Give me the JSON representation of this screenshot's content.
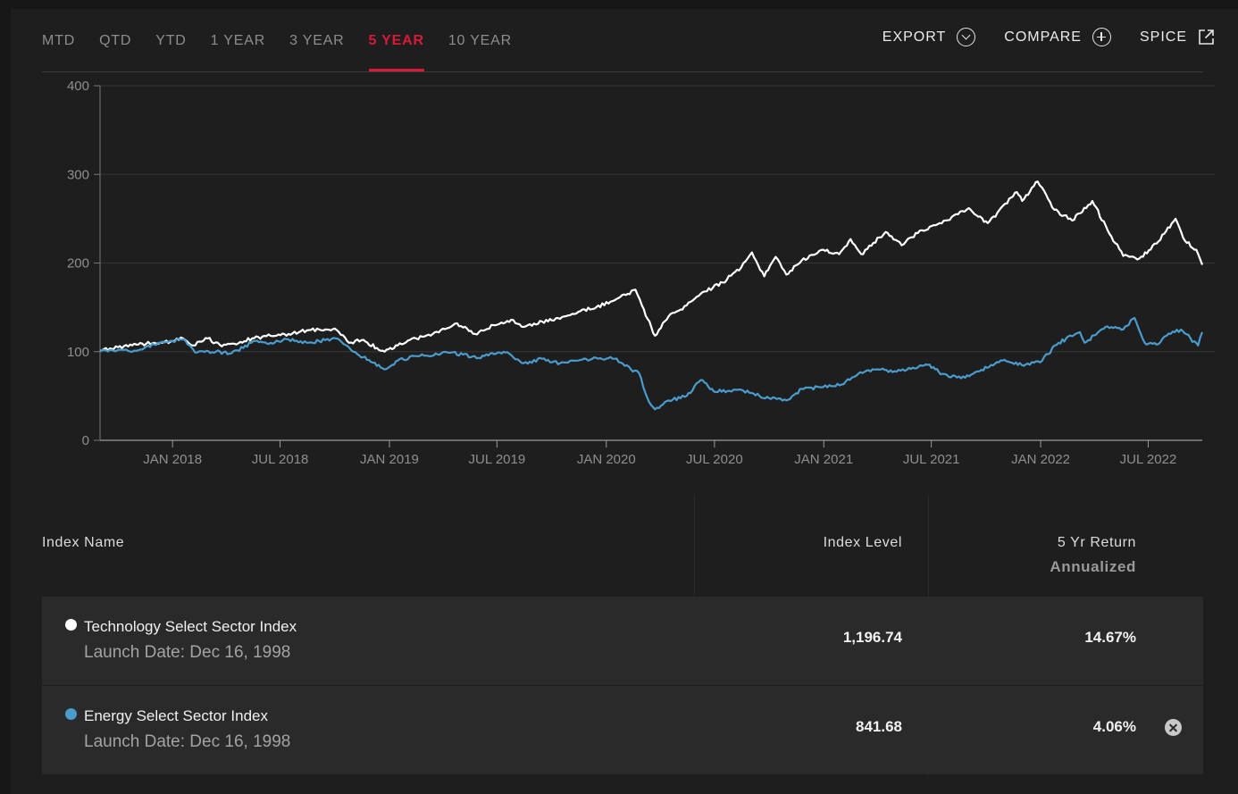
{
  "tabs": [
    {
      "label": "MTD"
    },
    {
      "label": "QTD"
    },
    {
      "label": "YTD"
    },
    {
      "label": "1 YEAR"
    },
    {
      "label": "3 YEAR"
    },
    {
      "label": "5 YEAR"
    },
    {
      "label": "10 YEAR"
    }
  ],
  "active_tab": "5 YEAR",
  "actions": {
    "export_label": "EXPORT",
    "compare_label": "COMPARE",
    "spice_label": "SPICE"
  },
  "colors": {
    "accent": "#d7193a",
    "series_tech": "#ffffff",
    "series_energy": "#4a9ccd"
  },
  "chart_data": {
    "type": "line",
    "title": "",
    "xlabel": "",
    "ylabel": "",
    "ylim": [
      0,
      400
    ],
    "yticks": [
      "0",
      "100",
      "200",
      "300",
      "400"
    ],
    "x_range": [
      "2017-09-01",
      "2022-09-30"
    ],
    "xticks": [
      {
        "label": "JAN 2018",
        "date": "2018-01-01"
      },
      {
        "label": "JUL 2018",
        "date": "2018-07-01"
      },
      {
        "label": "JAN 2019",
        "date": "2019-01-01"
      },
      {
        "label": "JUL 2019",
        "date": "2019-07-01"
      },
      {
        "label": "JAN 2020",
        "date": "2020-01-01"
      },
      {
        "label": "JUL 2020",
        "date": "2020-07-01"
      },
      {
        "label": "JAN 2021",
        "date": "2021-01-01"
      },
      {
        "label": "JUL 2021",
        "date": "2021-07-01"
      },
      {
        "label": "JAN 2022",
        "date": "2022-01-01"
      },
      {
        "label": "JUL 2022",
        "date": "2022-07-01"
      }
    ],
    "grid": true,
    "series": [
      {
        "color_key": "series_tech",
        "points": [
          [
            "2017-09-01",
            101
          ],
          [
            "2017-10-01",
            105
          ],
          [
            "2017-11-01",
            108
          ],
          [
            "2017-12-01",
            110
          ],
          [
            "2018-01-01",
            112
          ],
          [
            "2018-01-15",
            116
          ],
          [
            "2018-02-05",
            107
          ],
          [
            "2018-03-01",
            115
          ],
          [
            "2018-03-25",
            106
          ],
          [
            "2018-04-15",
            109
          ],
          [
            "2018-05-15",
            115
          ],
          [
            "2018-06-15",
            118
          ],
          [
            "2018-07-15",
            120
          ],
          [
            "2018-08-15",
            124
          ],
          [
            "2018-09-15",
            125
          ],
          [
            "2018-10-01",
            126
          ],
          [
            "2018-10-25",
            110
          ],
          [
            "2018-11-15",
            113
          ],
          [
            "2018-12-24",
            100
          ],
          [
            "2019-01-15",
            107
          ],
          [
            "2019-02-15",
            115
          ],
          [
            "2019-03-15",
            120
          ],
          [
            "2019-04-25",
            132
          ],
          [
            "2019-05-25",
            120
          ],
          [
            "2019-06-25",
            130
          ],
          [
            "2019-07-25",
            136
          ],
          [
            "2019-08-15",
            128
          ],
          [
            "2019-09-15",
            134
          ],
          [
            "2019-10-15",
            137
          ],
          [
            "2019-11-15",
            145
          ],
          [
            "2019-12-15",
            150
          ],
          [
            "2020-01-15",
            158
          ],
          [
            "2020-02-19",
            170
          ],
          [
            "2020-03-01",
            152
          ],
          [
            "2020-03-23",
            118
          ],
          [
            "2020-04-15",
            140
          ],
          [
            "2020-05-15",
            152
          ],
          [
            "2020-06-15",
            168
          ],
          [
            "2020-07-15",
            178
          ],
          [
            "2020-08-15",
            195
          ],
          [
            "2020-09-02",
            212
          ],
          [
            "2020-09-23",
            185
          ],
          [
            "2020-10-12",
            207
          ],
          [
            "2020-10-30",
            187
          ],
          [
            "2020-11-25",
            203
          ],
          [
            "2020-12-31",
            215
          ],
          [
            "2021-01-27",
            210
          ],
          [
            "2021-02-15",
            227
          ],
          [
            "2021-03-05",
            210
          ],
          [
            "2021-04-15",
            235
          ],
          [
            "2021-05-12",
            220
          ],
          [
            "2021-06-15",
            237
          ],
          [
            "2021-07-15",
            245
          ],
          [
            "2021-08-15",
            255
          ],
          [
            "2021-09-02",
            262
          ],
          [
            "2021-10-04",
            245
          ],
          [
            "2021-11-22",
            280
          ],
          [
            "2021-12-01",
            270
          ],
          [
            "2021-12-27",
            292
          ],
          [
            "2022-01-24",
            260
          ],
          [
            "2022-02-23",
            248
          ],
          [
            "2022-03-29",
            270
          ],
          [
            "2022-04-30",
            230
          ],
          [
            "2022-05-20",
            208
          ],
          [
            "2022-06-16",
            205
          ],
          [
            "2022-07-15",
            222
          ],
          [
            "2022-08-16",
            250
          ],
          [
            "2022-09-01",
            225
          ],
          [
            "2022-09-20",
            215
          ],
          [
            "2022-09-30",
            198
          ]
        ]
      },
      {
        "color_key": "series_energy",
        "points": [
          [
            "2017-09-01",
            100
          ],
          [
            "2017-10-01",
            102
          ],
          [
            "2017-11-01",
            101
          ],
          [
            "2017-12-01",
            108
          ],
          [
            "2018-01-01",
            112
          ],
          [
            "2018-01-20",
            114
          ],
          [
            "2018-02-08",
            99
          ],
          [
            "2018-03-15",
            100
          ],
          [
            "2018-04-10",
            98
          ],
          [
            "2018-05-20",
            112
          ],
          [
            "2018-06-15",
            110
          ],
          [
            "2018-07-15",
            114
          ],
          [
            "2018-08-15",
            110
          ],
          [
            "2018-09-15",
            113
          ],
          [
            "2018-10-03",
            115
          ],
          [
            "2018-11-01",
            100
          ],
          [
            "2018-12-24",
            80
          ],
          [
            "2019-01-15",
            90
          ],
          [
            "2019-02-15",
            95
          ],
          [
            "2019-04-15",
            99
          ],
          [
            "2019-05-31",
            93
          ],
          [
            "2019-06-20",
            98
          ],
          [
            "2019-07-15",
            99
          ],
          [
            "2019-08-15",
            87
          ],
          [
            "2019-09-15",
            92
          ],
          [
            "2019-10-15",
            87
          ],
          [
            "2019-11-15",
            90
          ],
          [
            "2019-12-15",
            93
          ],
          [
            "2020-01-15",
            92
          ],
          [
            "2020-02-01",
            84
          ],
          [
            "2020-02-25",
            76
          ],
          [
            "2020-03-10",
            48
          ],
          [
            "2020-03-23",
            35
          ],
          [
            "2020-04-15",
            45
          ],
          [
            "2020-05-15",
            50
          ],
          [
            "2020-06-08",
            68
          ],
          [
            "2020-06-30",
            55
          ],
          [
            "2020-08-15",
            57
          ],
          [
            "2020-09-15",
            50
          ],
          [
            "2020-10-30",
            45
          ],
          [
            "2020-11-25",
            58
          ],
          [
            "2020-12-31",
            60
          ],
          [
            "2021-01-31",
            63
          ],
          [
            "2021-02-28",
            75
          ],
          [
            "2021-03-31",
            80
          ],
          [
            "2021-04-30",
            78
          ],
          [
            "2021-05-31",
            82
          ],
          [
            "2021-06-25",
            85
          ],
          [
            "2021-07-20",
            75
          ],
          [
            "2021-08-20",
            70
          ],
          [
            "2021-09-20",
            78
          ],
          [
            "2021-10-29",
            90
          ],
          [
            "2021-11-30",
            85
          ],
          [
            "2021-12-31",
            88
          ],
          [
            "2022-01-31",
            110
          ],
          [
            "2022-03-08",
            122
          ],
          [
            "2022-03-16",
            110
          ],
          [
            "2022-04-20",
            128
          ],
          [
            "2022-05-20",
            125
          ],
          [
            "2022-06-08",
            138
          ],
          [
            "2022-06-25",
            110
          ],
          [
            "2022-07-15",
            108
          ],
          [
            "2022-08-01",
            118
          ],
          [
            "2022-08-25",
            125
          ],
          [
            "2022-09-23",
            107
          ],
          [
            "2022-09-30",
            122
          ]
        ]
      }
    ]
  },
  "table": {
    "headers": {
      "name": "Index Name",
      "level": "Index Level",
      "return": "5 Yr Return",
      "return_sub": "Annualized"
    },
    "rows": [
      {
        "name": "Technology Select Sector Index",
        "launch": "Launch Date: Dec 16, 1998",
        "level": "1,196.74",
        "return": "14.67%",
        "dot_color": "#ffffff"
      },
      {
        "name": "Energy Select Sector Index",
        "launch": "Launch Date: Dec 16, 1998",
        "level": "841.68",
        "return": "4.06%",
        "dot_color": "#4a9ccd"
      }
    ]
  }
}
